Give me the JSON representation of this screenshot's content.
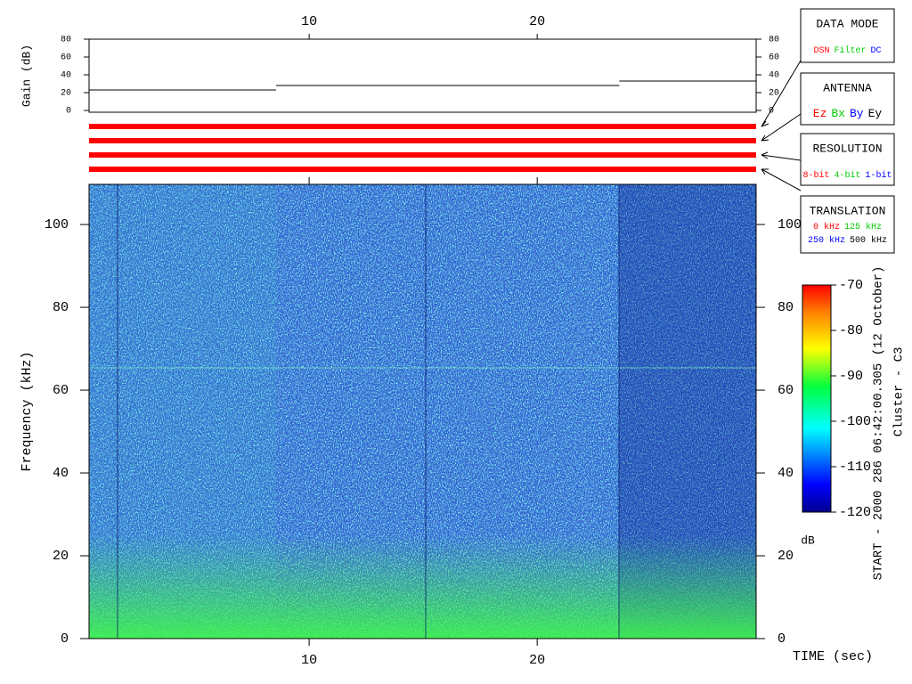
{
  "chart_data": [
    {
      "type": "step",
      "y_label": "Gain (dB)",
      "xlim": [
        0.35,
        29.6
      ],
      "xticks": [
        10,
        20
      ],
      "ylim": [
        0,
        80
      ],
      "yticks": [
        0,
        20,
        40,
        60,
        80
      ],
      "segments": [
        {
          "x": [
            0.35,
            8.55
          ],
          "values": [
            23,
            23
          ]
        },
        {
          "x": [
            8.55,
            23.6
          ],
          "values": [
            28,
            28
          ]
        },
        {
          "x": [
            23.6,
            29.6
          ],
          "values": [
            33,
            33
          ]
        }
      ],
      "color": "#000000",
      "status_colors": [
        "#ff0000",
        "#ff0000",
        "#ff0000",
        "#ff0000"
      ]
    },
    {
      "type": "spectrogram",
      "x_label": "TIME (sec)",
      "y_label": "Frequency (kHz)",
      "xlim": [
        0.35,
        29.6
      ],
      "xticks": [
        10,
        20
      ],
      "ylim": [
        0,
        109.7
      ],
      "yticks": [
        0,
        20,
        40,
        60,
        80,
        100
      ],
      "colorbar": {
        "label": "dB",
        "lim": [
          -120,
          -70
        ],
        "ticks": [
          -70,
          -80,
          -90,
          -100,
          -110,
          -120
        ]
      },
      "side_text": [
        "START - 2000 286 06:42:00.305 (12 October)",
        "Cluster - C3"
      ]
    }
  ],
  "legend_boxes": [
    {
      "title": "DATA MODE",
      "items": [
        [
          {
            "text": "DSN",
            "color": "#ff0000"
          },
          {
            "text": "Filter",
            "color": "#00cc00"
          },
          {
            "text": "DC",
            "color": "#0000ff"
          }
        ]
      ]
    },
    {
      "title": "ANTENNA",
      "items": [
        [
          {
            "text": "Ez",
            "color": "#ff0000"
          },
          {
            "text": "Bx",
            "color": "#00cc00"
          },
          {
            "text": "By",
            "color": "#0000ff"
          },
          {
            "text": "Ey",
            "color": "#000000"
          }
        ]
      ]
    },
    {
      "title": "RESOLUTION",
      "items": [
        [
          {
            "text": "8-bit",
            "color": "#ff0000"
          },
          {
            "text": "4-bit",
            "color": "#00cc00"
          },
          {
            "text": "1-bit",
            "color": "#0000ff"
          }
        ]
      ]
    },
    {
      "title": "TRANSLATION",
      "items": [
        [
          {
            "text": "0 kHz",
            "color": "#ff0000"
          },
          {
            "text": "125 kHz",
            "color": "#00cc00"
          }
        ],
        [
          {
            "text": "250 kHz",
            "color": "#0000ff"
          },
          {
            "text": "500 kHz",
            "color": "#000000"
          }
        ]
      ]
    }
  ]
}
